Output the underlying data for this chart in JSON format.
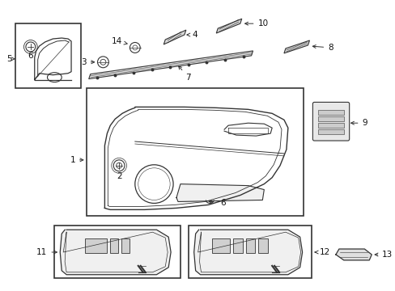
{
  "bg_color": "#ffffff",
  "line_color": "#333333",
  "text_color": "#111111",
  "fig_w": 4.89,
  "fig_h": 3.6,
  "dpi": 100
}
